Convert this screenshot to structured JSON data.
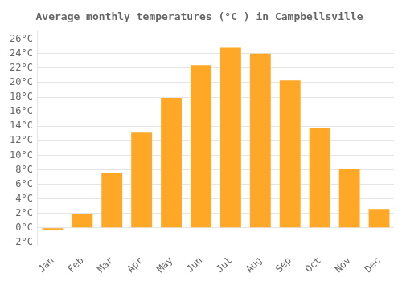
{
  "chart_data": {
    "type": "bar",
    "title": "Average monthly temperatures (°C ) in Campbellsville",
    "categories": [
      "Jan",
      "Feb",
      "Mar",
      "Apr",
      "May",
      "Jun",
      "Jul",
      "Aug",
      "Sep",
      "Oct",
      "Nov",
      "Dec"
    ],
    "values": [
      -0.3,
      1.9,
      7.5,
      13.1,
      17.9,
      22.4,
      24.8,
      24.0,
      20.3,
      13.7,
      8.1,
      2.6
    ],
    "color": "#FFA726",
    "ylim": [
      -2.5,
      27
    ],
    "yticks": [
      {
        "value": -2,
        "label": "-2°C"
      },
      {
        "value": 0,
        "label": "0°C"
      },
      {
        "value": 2,
        "label": "2°C"
      },
      {
        "value": 4,
        "label": "4°C"
      },
      {
        "value": 6,
        "label": "6°C"
      },
      {
        "value": 8,
        "label": "8°C"
      },
      {
        "value": 10,
        "label": "10°C"
      },
      {
        "value": 12,
        "label": "12°C"
      },
      {
        "value": 14,
        "label": "14°C"
      },
      {
        "value": 16,
        "label": "16°C"
      },
      {
        "value": 18,
        "label": "18°C"
      },
      {
        "value": 20,
        "label": "20°C"
      },
      {
        "value": 22,
        "label": "22°C"
      },
      {
        "value": 24,
        "label": "24°C"
      },
      {
        "value": 26,
        "label": "26°C"
      }
    ],
    "grid": true
  }
}
